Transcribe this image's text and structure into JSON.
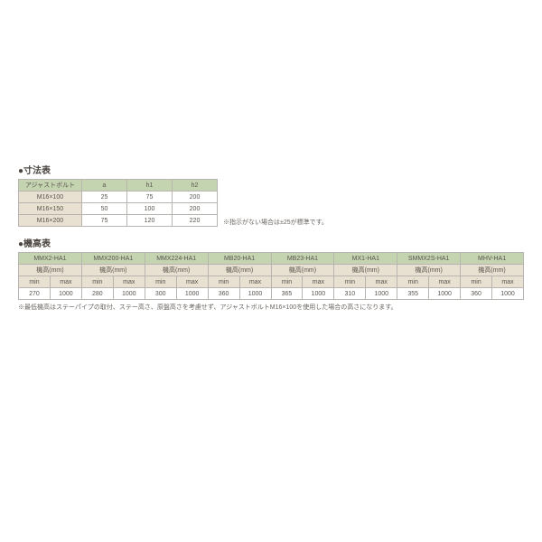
{
  "dim": {
    "title": "●寸法表",
    "headers": [
      "アジャストボルト",
      "a",
      "h1",
      "h2"
    ],
    "rows": [
      [
        "M16×100",
        "25",
        "75",
        "200"
      ],
      [
        "M16×150",
        "50",
        "100",
        "200"
      ],
      [
        "M16×200",
        "75",
        "120",
        "220"
      ]
    ],
    "note": "※指示がない場合は±25が標準です。"
  },
  "height": {
    "title": "●機高表",
    "models": [
      "MMX2-HA1",
      "MMX200-HA1",
      "MMX224-HA1",
      "MB20-HA1",
      "MB23-HA1",
      "MX1-HA1",
      "SMMX2S-HA1",
      "MHV-HA1"
    ],
    "unit": "機高(mm)",
    "sub": [
      "min",
      "max"
    ],
    "values": [
      [
        "270",
        "1000"
      ],
      [
        "280",
        "1000"
      ],
      [
        "300",
        "1000"
      ],
      [
        "360",
        "1000"
      ],
      [
        "365",
        "1000"
      ],
      [
        "310",
        "1000"
      ],
      [
        "355",
        "1000"
      ],
      [
        "360",
        "1000"
      ]
    ],
    "note": "※最低機高はステーパイプの取付、ステー高さ、原盤高さを考慮せず、アジャストボルトM16×100を使用した場合の高さになります。"
  },
  "colors": {
    "green": "#c5d4b0",
    "beige": "#e8e0d0",
    "border": "#b8b5b0",
    "text": "#5a5550"
  }
}
